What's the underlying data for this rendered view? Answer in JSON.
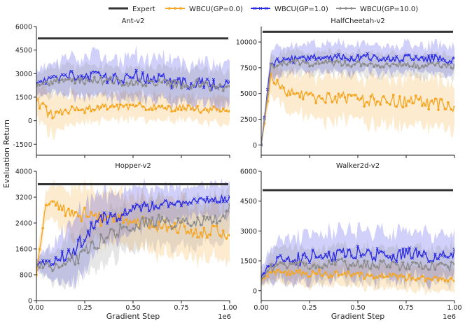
{
  "figure": {
    "ylabel": "Evaluation Return",
    "xlabel": "Gradient Step",
    "xscale_label": "1e6",
    "legend": [
      {
        "name": "Expert",
        "color": "#333333",
        "marker": "line"
      },
      {
        "name": "WBCU(GP=0.0)",
        "color": "#f5a623",
        "marker": "dot"
      },
      {
        "name": "WBCU(GP=1.0)",
        "color": "#2a2ae6",
        "marker": "cross"
      },
      {
        "name": "WBCU(GP=10.0)",
        "color": "#8c8c8c",
        "marker": "diamond"
      }
    ]
  },
  "chart_data": [
    {
      "type": "line",
      "title": "Ant-v2",
      "xlim": [
        0,
        1.0
      ],
      "ylim": [
        -2200,
        6000
      ],
      "xticks": [
        "0.00",
        "0.25",
        "0.50",
        "0.75",
        "1.00"
      ],
      "yticks": [
        -1500,
        0,
        1500,
        3000,
        4500,
        6000
      ],
      "expert": 5250,
      "series": [
        {
          "name": "WBCU(GP=0.0)",
          "x": [
            0,
            0.05,
            0.1,
            0.15,
            0.2,
            0.25,
            0.3,
            0.35,
            0.4,
            0.45,
            0.5,
            0.55,
            0.6,
            0.65,
            0.7,
            0.75,
            0.8,
            0.85,
            0.9,
            0.95,
            1.0
          ],
          "values": [
            1300,
            600,
            450,
            650,
            700,
            700,
            800,
            900,
            900,
            850,
            950,
            900,
            850,
            850,
            800,
            800,
            800,
            700,
            700,
            800,
            600
          ],
          "spread": [
            900,
            1400,
            1300,
            1000,
            900,
            900,
            900,
            900,
            800,
            800,
            800,
            800,
            800,
            800,
            800,
            800,
            800,
            800,
            800,
            800,
            800
          ]
        },
        {
          "name": "WBCU(GP=1.0)",
          "x": [
            0,
            0.05,
            0.1,
            0.15,
            0.2,
            0.25,
            0.3,
            0.35,
            0.4,
            0.45,
            0.5,
            0.55,
            0.6,
            0.65,
            0.7,
            0.75,
            0.8,
            0.85,
            0.9,
            0.95,
            1.0
          ],
          "values": [
            2400,
            2500,
            2700,
            3000,
            2800,
            2600,
            2900,
            2800,
            2700,
            2600,
            2900,
            2800,
            2500,
            2700,
            2400,
            2500,
            2200,
            2500,
            2300,
            2400,
            2500
          ],
          "spread": [
            800,
            900,
            1000,
            1200,
            1200,
            1300,
            1300,
            1300,
            1300,
            1300,
            1300,
            1300,
            1300,
            1300,
            1300,
            1300,
            1300,
            1300,
            1300,
            1300,
            1300
          ]
        },
        {
          "name": "WBCU(GP=10.0)",
          "x": [
            0,
            0.05,
            0.1,
            0.15,
            0.2,
            0.25,
            0.3,
            0.35,
            0.4,
            0.45,
            0.5,
            0.55,
            0.6,
            0.65,
            0.7,
            0.75,
            0.8,
            0.85,
            0.9,
            0.95,
            1.0
          ],
          "values": [
            2200,
            2400,
            2500,
            2600,
            2600,
            2500,
            2700,
            2500,
            2600,
            2400,
            2500,
            2500,
            2300,
            2500,
            2300,
            2200,
            2300,
            2400,
            2200,
            2200,
            2100
          ],
          "spread": [
            700,
            800,
            900,
            1000,
            1000,
            1000,
            1000,
            1000,
            1000,
            1000,
            1000,
            1000,
            1000,
            1000,
            1000,
            1000,
            1000,
            1000,
            1000,
            1000,
            1000
          ]
        }
      ]
    },
    {
      "type": "line",
      "title": "HalfCheetah-v2",
      "xlim": [
        0,
        1.0
      ],
      "ylim": [
        -1000,
        11500
      ],
      "xticks": [
        "0.00",
        "0.25",
        "0.50",
        "0.75",
        "1.00"
      ],
      "yticks": [
        0,
        2500,
        5000,
        7500,
        10000
      ],
      "expert": 11000,
      "series": [
        {
          "name": "WBCU(GP=0.0)",
          "x": [
            0,
            0.05,
            0.1,
            0.15,
            0.2,
            0.25,
            0.3,
            0.35,
            0.4,
            0.45,
            0.5,
            0.55,
            0.6,
            0.65,
            0.7,
            0.75,
            0.8,
            0.85,
            0.9,
            0.95,
            1.0
          ],
          "values": [
            0,
            6500,
            5600,
            5100,
            4800,
            4600,
            4700,
            4500,
            4600,
            4400,
            4500,
            4300,
            4400,
            4200,
            4300,
            4100,
            4200,
            4000,
            4100,
            3900,
            3600
          ],
          "spread": [
            0,
            1500,
            1600,
            1800,
            2000,
            2100,
            2200,
            2200,
            2300,
            2300,
            2300,
            2300,
            2300,
            2300,
            2300,
            2300,
            2300,
            2300,
            2300,
            2300,
            2300
          ]
        },
        {
          "name": "WBCU(GP=1.0)",
          "x": [
            0,
            0.05,
            0.1,
            0.15,
            0.2,
            0.25,
            0.3,
            0.35,
            0.4,
            0.45,
            0.5,
            0.55,
            0.6,
            0.65,
            0.7,
            0.75,
            0.8,
            0.85,
            0.9,
            0.95,
            1.0
          ],
          "values": [
            0,
            7900,
            8200,
            8300,
            8400,
            8500,
            8400,
            8500,
            8600,
            8400,
            8500,
            8600,
            8400,
            8500,
            8400,
            8500,
            8400,
            8300,
            8400,
            8300,
            8100
          ],
          "spread": [
            0,
            1200,
            1300,
            1300,
            1300,
            1300,
            1300,
            1300,
            1300,
            1300,
            1300,
            1300,
            1300,
            1300,
            1300,
            1300,
            1300,
            1300,
            1300,
            1300,
            1300
          ]
        },
        {
          "name": "WBCU(GP=10.0)",
          "x": [
            0,
            0.05,
            0.1,
            0.15,
            0.2,
            0.25,
            0.3,
            0.35,
            0.4,
            0.45,
            0.5,
            0.55,
            0.6,
            0.65,
            0.7,
            0.75,
            0.8,
            0.85,
            0.9,
            0.95,
            1.0
          ],
          "values": [
            0,
            7600,
            7800,
            7900,
            8000,
            7900,
            8000,
            7900,
            8000,
            7800,
            7900,
            7800,
            7700,
            7800,
            7700,
            7800,
            7700,
            7600,
            7800,
            7700,
            7600
          ],
          "spread": [
            0,
            1000,
            1100,
            1100,
            1100,
            1100,
            1100,
            1100,
            1100,
            1100,
            1100,
            1100,
            1100,
            1100,
            1100,
            1100,
            1100,
            1100,
            1100,
            1100,
            1100
          ]
        }
      ]
    },
    {
      "type": "line",
      "title": "Hopper-v2",
      "xlim": [
        0,
        1.0
      ],
      "ylim": [
        0,
        4000
      ],
      "xticks": [
        "0.00",
        "0.25",
        "0.50",
        "0.75",
        "1.00"
      ],
      "yticks": [
        0,
        800,
        1600,
        2400,
        3200,
        4000
      ],
      "expert": 3600,
      "series": [
        {
          "name": "WBCU(GP=0.0)",
          "x": [
            0,
            0.05,
            0.1,
            0.15,
            0.2,
            0.25,
            0.3,
            0.35,
            0.4,
            0.45,
            0.5,
            0.55,
            0.6,
            0.65,
            0.7,
            0.75,
            0.8,
            0.85,
            0.9,
            0.95,
            1.0
          ],
          "values": [
            800,
            3000,
            3000,
            2800,
            2600,
            2700,
            2600,
            2500,
            2600,
            2500,
            2400,
            2500,
            2300,
            2400,
            2200,
            2300,
            2200,
            2100,
            2200,
            2100,
            1900
          ],
          "spread": [
            300,
            400,
            600,
            700,
            800,
            800,
            800,
            800,
            800,
            800,
            800,
            800,
            800,
            800,
            800,
            800,
            800,
            800,
            800,
            800,
            800
          ]
        },
        {
          "name": "WBCU(GP=1.0)",
          "x": [
            0,
            0.05,
            0.1,
            0.15,
            0.2,
            0.25,
            0.3,
            0.35,
            0.4,
            0.45,
            0.5,
            0.55,
            0.6,
            0.65,
            0.7,
            0.75,
            0.8,
            0.85,
            0.9,
            0.95,
            1.0
          ],
          "values": [
            1100,
            1200,
            1200,
            1400,
            1600,
            1900,
            2300,
            2500,
            2600,
            2700,
            2800,
            2900,
            2900,
            3000,
            3000,
            3000,
            3100,
            3100,
            3100,
            3100,
            3200
          ],
          "spread": [
            200,
            400,
            600,
            800,
            900,
            1000,
            900,
            800,
            700,
            700,
            600,
            600,
            600,
            500,
            500,
            500,
            500,
            500,
            500,
            500,
            500
          ]
        },
        {
          "name": "WBCU(GP=10.0)",
          "x": [
            0,
            0.05,
            0.1,
            0.15,
            0.2,
            0.25,
            0.3,
            0.35,
            0.4,
            0.45,
            0.5,
            0.55,
            0.6,
            0.65,
            0.7,
            0.75,
            0.8,
            0.85,
            0.9,
            0.95,
            1.0
          ],
          "values": [
            1100,
            1100,
            1000,
            1200,
            1300,
            1500,
            1700,
            1900,
            2100,
            2200,
            2300,
            2400,
            2400,
            2500,
            2400,
            2500,
            2400,
            2500,
            2500,
            2600,
            2800
          ],
          "spread": [
            200,
            400,
            500,
            700,
            800,
            800,
            800,
            800,
            800,
            700,
            700,
            700,
            700,
            700,
            700,
            700,
            700,
            700,
            700,
            700,
            700
          ]
        }
      ]
    },
    {
      "type": "line",
      "title": "Walker2d-v2",
      "xlim": [
        0,
        1.0
      ],
      "ylim": [
        -500,
        6000
      ],
      "xticks": [
        "0.00",
        "0.25",
        "0.50",
        "0.75",
        "1.00"
      ],
      "yticks": [
        0,
        1500,
        3000,
        4500,
        6000
      ],
      "expert": 5050,
      "series": [
        {
          "name": "WBCU(GP=0.0)",
          "x": [
            0,
            0.05,
            0.1,
            0.15,
            0.2,
            0.25,
            0.3,
            0.35,
            0.4,
            0.45,
            0.5,
            0.55,
            0.6,
            0.65,
            0.7,
            0.75,
            0.8,
            0.85,
            0.9,
            0.95,
            1.0
          ],
          "values": [
            500,
            900,
            1000,
            900,
            900,
            800,
            900,
            800,
            850,
            800,
            750,
            700,
            800,
            700,
            700,
            650,
            650,
            600,
            600,
            600,
            550
          ],
          "spread": [
            300,
            500,
            600,
            600,
            600,
            600,
            600,
            600,
            600,
            600,
            600,
            600,
            600,
            600,
            600,
            600,
            600,
            600,
            600,
            600,
            600
          ]
        },
        {
          "name": "WBCU(GP=1.0)",
          "x": [
            0,
            0.05,
            0.1,
            0.15,
            0.2,
            0.25,
            0.3,
            0.35,
            0.4,
            0.45,
            0.5,
            0.55,
            0.6,
            0.65,
            0.7,
            0.75,
            0.8,
            0.85,
            0.9,
            0.95,
            1.0
          ],
          "values": [
            700,
            1300,
            1600,
            1700,
            1600,
            1700,
            1800,
            1700,
            1900,
            1800,
            1900,
            1800,
            1800,
            1900,
            1700,
            1900,
            1800,
            1800,
            1700,
            1800,
            1900
          ],
          "spread": [
            400,
            800,
            1000,
            1100,
            1200,
            1200,
            1200,
            1200,
            1200,
            1200,
            1200,
            1200,
            1200,
            1200,
            1200,
            1200,
            1200,
            1200,
            1200,
            1200,
            1200
          ]
        },
        {
          "name": "WBCU(GP=10.0)",
          "x": [
            0,
            0.05,
            0.1,
            0.15,
            0.2,
            0.25,
            0.3,
            0.35,
            0.4,
            0.45,
            0.5,
            0.55,
            0.6,
            0.65,
            0.7,
            0.75,
            0.8,
            0.85,
            0.9,
            0.95,
            1.0
          ],
          "values": [
            600,
            1100,
            1300,
            1400,
            1300,
            1300,
            1400,
            1300,
            1400,
            1300,
            1400,
            1300,
            1300,
            1300,
            1200,
            1300,
            1200,
            1200,
            1300,
            1200,
            1200
          ],
          "spread": [
            300,
            700,
            800,
            900,
            900,
            900,
            900,
            900,
            900,
            900,
            900,
            900,
            900,
            900,
            900,
            900,
            900,
            900,
            900,
            900,
            900
          ]
        }
      ]
    }
  ]
}
